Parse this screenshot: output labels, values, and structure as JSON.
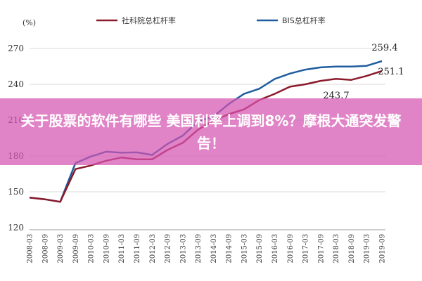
{
  "overlay": {
    "text": "关于股票的软件有哪些 美国利率上调到8%？摩根大通突发警告！",
    "color": "#d654b2"
  },
  "chart_data": {
    "type": "line",
    "ylabel": "(%)",
    "ylim": [
      120,
      270
    ],
    "yticks": [
      120,
      150,
      180,
      210,
      240,
      270
    ],
    "x": [
      "2008-03",
      "2008-09",
      "2009-03",
      "2009-09",
      "2010-03",
      "2010-09",
      "2011-03",
      "2011-09",
      "2012-03",
      "2012-09",
      "2013-03",
      "2013-09",
      "2014-03",
      "2014-09",
      "2015-03",
      "2015-09",
      "2016-03",
      "2016-09",
      "2017-03",
      "2017-09",
      "2018-03",
      "2018-09",
      "2019-03",
      "2019-09"
    ],
    "legend_position": "top",
    "series": [
      {
        "name": "社科院总杠杆率",
        "color": "#8b1a2b",
        "values": [
          145.2,
          143.7,
          141.6,
          169.0,
          172.0,
          176.0,
          178.7,
          177.2,
          177.2,
          185.0,
          191.0,
          202.0,
          209.4,
          215.0,
          219.0,
          226.8,
          232.0,
          238.0,
          240.0,
          242.9,
          244.6,
          243.7,
          247.0,
          251.1
        ]
      },
      {
        "name": "BIS总杠杆率",
        "color": "#1f5d9e",
        "values": [
          145.2,
          143.7,
          141.6,
          174.0,
          179.5,
          183.6,
          182.7,
          183.0,
          180.9,
          190.0,
          197.0,
          209.0,
          213.0,
          223.5,
          232.0,
          236.3,
          244.5,
          249.0,
          252.3,
          254.2,
          254.8,
          254.8,
          255.5,
          259.4
        ]
      }
    ],
    "annotations": [
      {
        "text": "259.4"
      },
      {
        "text": "251.1"
      },
      {
        "text": "243.7"
      }
    ]
  }
}
